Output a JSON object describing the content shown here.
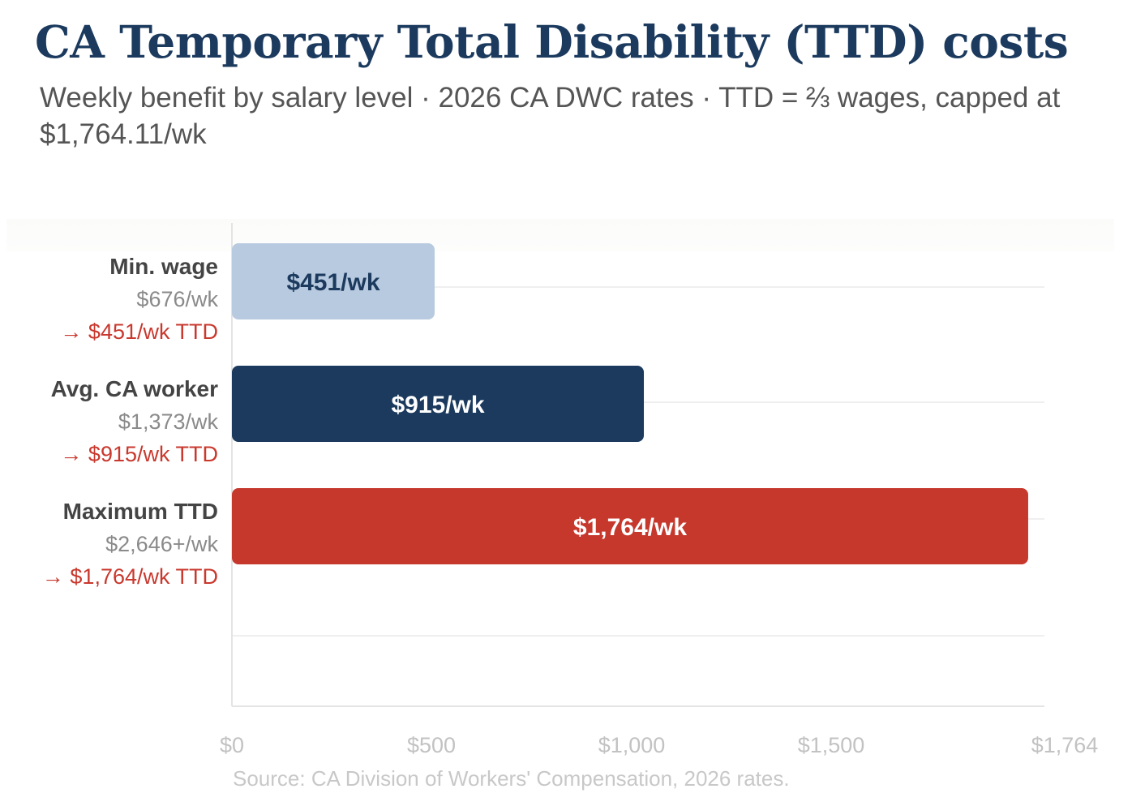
{
  "header": {
    "title": "CA Temporary Total Disability (TTD) costs",
    "subtitle": "Weekly benefit by salary level · 2026 CA DWC rates · TTD = ⅔ wages, capped at $1,764.11/wk"
  },
  "colors": {
    "title": "#1b3a5e",
    "min_wage_bar": "#b8cadf",
    "avg_worker_bar": "#1b3a5e",
    "max_ttd_bar": "#c6372c",
    "ttd_text": "#c9382d"
  },
  "chart_data": {
    "type": "bar",
    "orientation": "horizontal",
    "title": "CA Temporary Total Disability (TTD) costs",
    "subtitle": "Weekly benefit by salary level · 2026 CA DWC rates · TTD = ⅔ wages, capped at $1,764.11/wk",
    "xlabel": "",
    "ylabel": "",
    "categories": [
      "Min. wage",
      "Avg. CA worker",
      "Maximum TTD"
    ],
    "weekly_wages": [
      "$676/wk",
      "$1,373/wk",
      "$2,646+/wk"
    ],
    "ttd_annotations": [
      "→ $451/wk TTD",
      "→ $915/wk TTD",
      "→ $1,764/wk TTD"
    ],
    "values": [
      451,
      915,
      1764
    ],
    "bar_labels": [
      "$451/wk",
      "$915/wk",
      "$1,764/wk"
    ],
    "bar_colors": [
      "#b8cadf",
      "#1b3a5e",
      "#c6372c"
    ],
    "bar_label_colors": [
      "#1b3a5e",
      "#ffffff",
      "#ffffff"
    ],
    "x_ticks": [
      0,
      500,
      1000,
      1500,
      1764
    ],
    "x_tick_labels": [
      "$0",
      "$500",
      "$1,000",
      "$1,500",
      "$1,764"
    ],
    "xlim": [
      0,
      1764
    ],
    "grid": true,
    "legend": "none",
    "source": "Source: CA Division of Workers' Compensation, 2026 rates."
  }
}
